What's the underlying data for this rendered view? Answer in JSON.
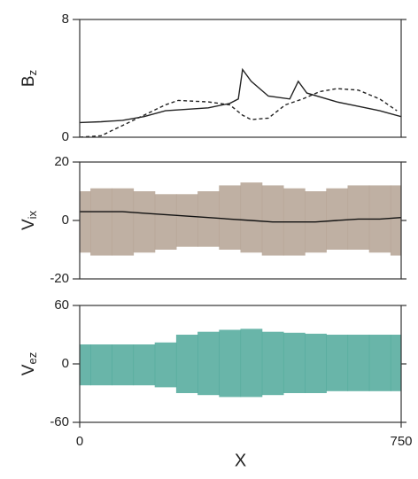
{
  "chart_data": [
    {
      "type": "line",
      "ylabel": "B",
      "ylabel_subscript": "z",
      "ylim": [
        0,
        8
      ],
      "yticks": [
        0,
        8
      ],
      "xlim": [
        0,
        750
      ],
      "series": [
        {
          "style": "solid",
          "color": "#222222",
          "x": [
            0,
            50,
            100,
            150,
            200,
            250,
            300,
            350,
            370,
            380,
            400,
            440,
            490,
            510,
            530,
            600,
            650,
            700,
            750
          ],
          "values": [
            1.0,
            1.05,
            1.15,
            1.4,
            1.8,
            1.9,
            2.0,
            2.3,
            2.6,
            4.6,
            3.8,
            2.8,
            2.6,
            3.8,
            3.0,
            2.4,
            2.1,
            1.8,
            1.4
          ]
        },
        {
          "style": "dashed",
          "color": "#222222",
          "x": [
            0,
            50,
            100,
            150,
            200,
            230,
            300,
            350,
            380,
            400,
            440,
            480,
            520,
            560,
            600,
            650,
            700,
            740
          ],
          "values": [
            0.0,
            0.1,
            0.8,
            1.5,
            2.2,
            2.5,
            2.4,
            2.2,
            1.5,
            1.2,
            1.3,
            2.2,
            2.6,
            3.1,
            3.3,
            3.2,
            2.6,
            1.8
          ]
        }
      ]
    },
    {
      "type": "band",
      "ylabel": "V",
      "ylabel_subscript": "ix",
      "ylim": [
        -20,
        20
      ],
      "yticks": [
        -20,
        0,
        20
      ],
      "xlim": [
        0,
        750
      ],
      "color": "#b4a293",
      "line_color": "#111111",
      "x": [
        0,
        50,
        100,
        150,
        200,
        250,
        300,
        350,
        400,
        450,
        500,
        550,
        600,
        650,
        700,
        750
      ],
      "upper": [
        10,
        11,
        11,
        10,
        9,
        9,
        10,
        12,
        13,
        12,
        11,
        10,
        11,
        12,
        12,
        12
      ],
      "lower": [
        -11,
        -12,
        -12,
        -11,
        -10,
        -9,
        -9,
        -10,
        -11,
        -12,
        -12,
        -11,
        -10,
        -10,
        -11,
        -12
      ],
      "mean": [
        3,
        3,
        3,
        2.5,
        2,
        1.5,
        1,
        0.5,
        0,
        -0.5,
        -0.5,
        -0.5,
        0,
        0.5,
        0.5,
        1
      ]
    },
    {
      "type": "band",
      "ylabel": "V",
      "ylabel_subscript": "ez",
      "ylim": [
        -60,
        60
      ],
      "yticks": [
        -60,
        0,
        60
      ],
      "xlim": [
        0,
        750
      ],
      "xticks": [
        0,
        750
      ],
      "xlabel": "X",
      "color": "#4fa89a",
      "x": [
        0,
        50,
        100,
        150,
        200,
        250,
        300,
        350,
        400,
        450,
        500,
        550,
        600,
        650,
        700,
        750
      ],
      "upper": [
        20,
        20,
        20,
        20,
        22,
        30,
        33,
        35,
        36,
        33,
        32,
        31,
        30,
        30,
        30,
        30
      ],
      "lower": [
        -22,
        -22,
        -22,
        -22,
        -24,
        -30,
        -32,
        -34,
        -34,
        -32,
        -30,
        -30,
        -28,
        -28,
        -28,
        -28
      ]
    }
  ]
}
